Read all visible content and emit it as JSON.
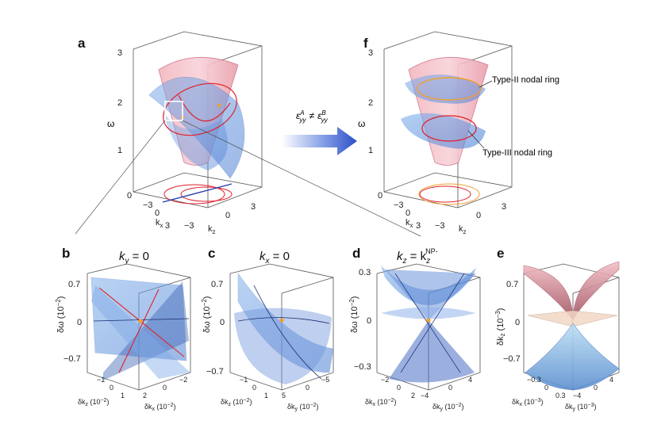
{
  "panels": {
    "a": {
      "letter": "a",
      "omega": "ω",
      "ticks_omega": [
        "3",
        "2",
        "1",
        "0"
      ],
      "kx": "k",
      "kx_sub": "x",
      "kz": "k",
      "kz_sub": "z",
      "kx_ticks": [
        "−3",
        "0",
        "3"
      ],
      "kz_ticks": [
        "−3",
        "0",
        "3"
      ]
    },
    "f": {
      "letter": "f",
      "omega": "ω",
      "ticks_omega": [
        "3",
        "2",
        "1",
        "0"
      ],
      "kx": "k",
      "kx_sub": "x",
      "kz": "k",
      "kz_sub": "z",
      "kx_ticks": [
        "−3",
        "0",
        "3"
      ],
      "kz_ticks": [
        "−3",
        "0",
        "3"
      ],
      "type2": "Type-II nodal ring",
      "type3": "Type-III nodal ring"
    },
    "arrow": {
      "eps_a": "ε",
      "sup_a": "A",
      "sub_a": "yy",
      "neq": "≠",
      "eps_b": "ε",
      "sup_b": "B",
      "sub_b": "yy"
    },
    "b": {
      "letter": "b",
      "title_k": "k",
      "title_sub": "y",
      "title_rest": " = 0",
      "yticks": [
        "0.7",
        "0",
        "−0.7"
      ],
      "ylabel": "δω (10",
      "ylabel_exp": "−2",
      "ylabel_end": ")",
      "xl1": "δk",
      "xl1_sub": "z",
      "xl1_rest": " (10",
      "xl1_exp": "−2",
      "xl2": "δk",
      "xl2_sub": "x",
      "xl2_rest": " (10",
      "xl2_exp": "−2",
      "t1": [
        "−1",
        "0",
        "1"
      ],
      "t2": [
        "2",
        "0",
        "−2"
      ]
    },
    "c": {
      "letter": "c",
      "title_k": "k",
      "title_sub": "x",
      "title_rest": " = 0",
      "yticks": [
        "0.7",
        "0",
        "−0.7"
      ],
      "ylabel": "δω (10",
      "ylabel_exp": "−2",
      "ylabel_end": ")",
      "xl1": "δk",
      "xl1_sub": "z",
      "xl1_rest": " (10",
      "xl1_exp": "−2",
      "xl2": "δk",
      "xl2_sub": "y",
      "xl2_rest": " (10",
      "xl2_exp": "−2",
      "t1": [
        "−1",
        "0",
        "1"
      ],
      "t2": [
        "5",
        "0",
        "−5"
      ]
    },
    "d": {
      "letter": "d",
      "title_k": "k",
      "title_sub": "z",
      "title_rest": " = k",
      "title_sub2": "z",
      "title_sup2": "NP-",
      "yticks": [
        "0.3",
        "0",
        "−0.3"
      ],
      "ylabel": "δω (10",
      "ylabel_exp": "−2",
      "ylabel_end": ")",
      "xl1": "δk",
      "xl1_sub": "x",
      "xl1_rest": " (10",
      "xl1_exp": "−2",
      "xl2": "δk",
      "xl2_sub": "y",
      "xl2_rest": " (10",
      "xl2_exp": "−2",
      "t1": [
        "−2",
        "0",
        "2"
      ],
      "t2": [
        "−4",
        "0",
        "4"
      ]
    },
    "e": {
      "letter": "e",
      "yticks": [
        "0.7",
        "0",
        "−0.7"
      ],
      "ylabel": "δk",
      "ylabel_sub": "z",
      "ylabel_rest": " (10",
      "ylabel_exp": "−3",
      "ylabel_end": ")",
      "xl1": "δk",
      "xl1_sub": "x",
      "xl1_rest": " (10",
      "xl1_exp": "−3",
      "xl2": "δk",
      "xl2_sub": "y",
      "xl2_rest": " (10",
      "xl2_exp": "−3",
      "t1": [
        "−0.3",
        "0",
        "0.3"
      ],
      "t2": [
        "−4",
        "0",
        "4"
      ]
    }
  },
  "colors": {
    "pink": "#e8707f",
    "blue": "#6f9fe0",
    "red": "#e0202a",
    "orange": "#f0a030",
    "navy": "#2a3fb0",
    "arrow": "#3a5fd0"
  }
}
